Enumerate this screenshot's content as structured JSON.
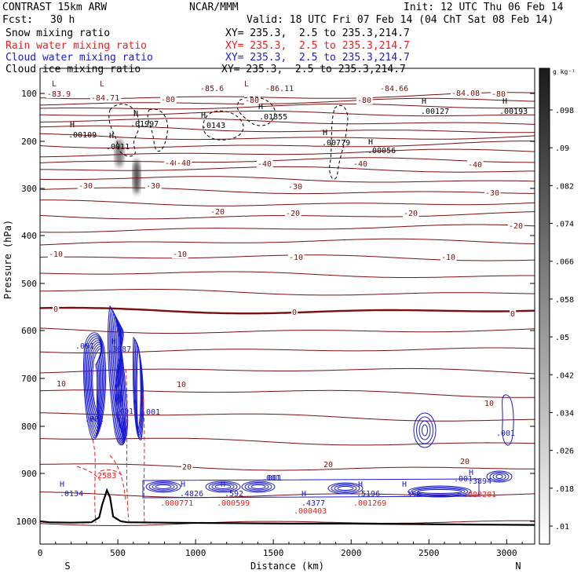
{
  "header": {
    "model": "CONTRAST 15km ARW",
    "center": "NCAR/MMM",
    "init": "Init: 12 UTC Thu 06 Feb 14",
    "fcst_label": "Fcst:",
    "fcst_value": "30 h",
    "valid": "Valid: 18 UTC Fri 07 Feb 14 (04 ChT Sat 08 Feb 14)"
  },
  "fields": [
    {
      "name": "Snow mixing ratio",
      "xy": "XY= 235.3,  2.5 to 235.3,214.7",
      "color": "#000000"
    },
    {
      "name": "Rain water mixing ratio",
      "xy": "XY= 235.3,  2.5 to 235.3,214.7",
      "color": "#ee1c1c"
    },
    {
      "name": "Cloud water mixing ratio",
      "xy": "XY= 235.3,  2.5 to 235.3,214.7",
      "color": "#1a1ad0"
    },
    {
      "name": "Cloud ice mixing ratio",
      "xy": "XY= 235.3,  2.5 to 235.3,214.7",
      "color": "#000000"
    }
  ],
  "colorbar": {
    "unit": "g kg⁻¹",
    "ticks": [
      ".098",
      ".09",
      ".082",
      ".074",
      ".066",
      ".058",
      ".05",
      ".042",
      ".034",
      ".026",
      ".018",
      ".01"
    ]
  },
  "chart_data": {
    "type": "cross-section",
    "xlabel": "Distance (km)",
    "ylabel": "Pressure (hPa)",
    "xlim": [
      0,
      3180
    ],
    "ylim": [
      1050,
      50
    ],
    "y_scale": "log",
    "x_ticks": [
      "0",
      "500",
      "1000",
      "1500",
      "2000",
      "2500",
      "3000"
    ],
    "y_ticks": [
      "100",
      "200",
      "300",
      "400",
      "500",
      "600",
      "700",
      "800",
      "900",
      "1000"
    ],
    "x_end_labels": {
      "left": "S",
      "right": "N"
    },
    "isotherm_labels": [
      "-83.9",
      "-84.71",
      "-80",
      "-85.6",
      "-80",
      "-86.11",
      "-80",
      "-84.66",
      "-84.08",
      "-80",
      "-40",
      "-40",
      "-40",
      "-40",
      "-40",
      "-30",
      "-30",
      "-30",
      "-30",
      "-20",
      "-20",
      "-20",
      "-20",
      "-10",
      "-10",
      "-10",
      "-10",
      "0",
      "0",
      "0",
      "10",
      "10",
      "10",
      "20",
      "20",
      "20"
    ],
    "isotherm_levels_hPa": [
      105,
      118,
      130,
      145,
      160,
      175,
      190,
      207,
      225,
      243,
      262,
      282,
      305,
      330,
      357,
      385,
      415,
      448,
      482,
      518,
      556,
      596,
      638,
      682,
      728,
      777,
      828,
      882,
      940,
      1000
    ],
    "surface_pressure": {
      "x": [
        0,
        60,
        200,
        330,
        380,
        400,
        430,
        450,
        470,
        520,
        560,
        800,
        1200,
        1600,
        2000,
        2400,
        2800,
        3180
      ],
      "p": [
        1000,
        1002,
        1003,
        1002,
        992,
        965,
        935,
        950,
        990,
        1000,
        1002,
        1003,
        1004,
        1005,
        1005,
        1006,
        1007,
        1008
      ]
    },
    "snow_labels": [
      ".00109",
      ".01997",
      ".0143",
      ".01855",
      ".00779",
      ".00056",
      ".00127",
      ".00193",
      ".0011"
    ],
    "cloud_water_labels": [
      ".001",
      ".3687",
      ".401",
      ".001",
      ".001",
      ".001",
      ".0134",
      ".4826",
      ".592",
      ".001",
      ".4377",
      ".5196",
      ".358",
      ".001",
      ".3894",
      ".001"
    ],
    "rain_labels": [
      ".2583",
      ".000771",
      ".000599",
      ".000403",
      ".001269",
      ".000201"
    ],
    "max_labels": [
      "L",
      "L",
      "L",
      "H",
      "H",
      "H",
      "H",
      "H",
      "H",
      "H",
      "H",
      "H",
      "H",
      "H",
      "H",
      "H",
      "H",
      "H",
      "H",
      "H"
    ]
  }
}
